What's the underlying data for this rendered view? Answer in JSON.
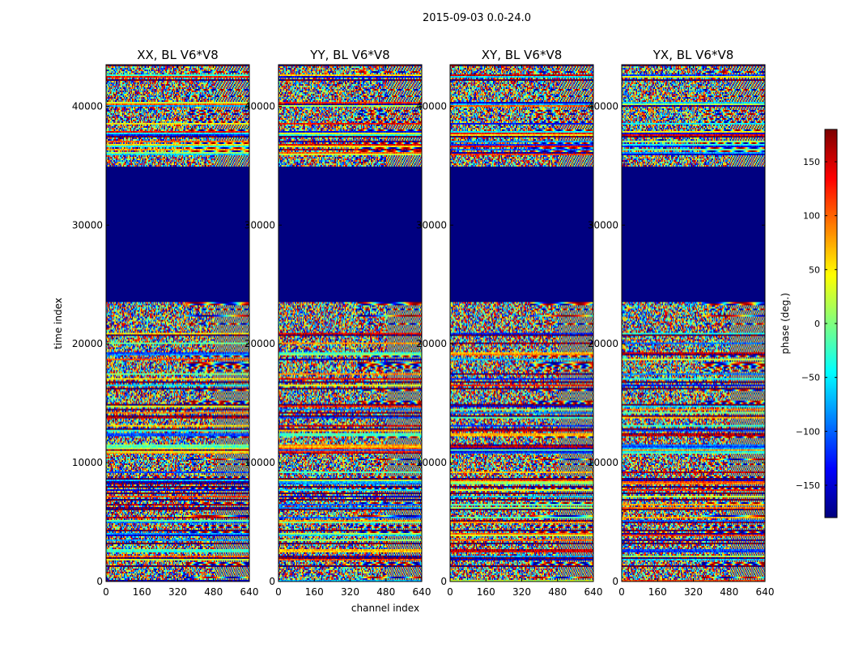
{
  "chart_data": {
    "type": "heatmap",
    "title": "2015-09-03 0.0-24.0",
    "xlabel": "channel index",
    "ylabel": "time index",
    "xlim": [
      0,
      640
    ],
    "ylim": [
      0,
      43500
    ],
    "x_ticks": [
      0,
      160,
      320,
      480,
      640
    ],
    "y_ticks": [
      0,
      10000,
      20000,
      30000,
      40000
    ],
    "panels": [
      {
        "title": "XX, BL V6*V8",
        "pol": "XX"
      },
      {
        "title": "YY, BL V6*V8",
        "pol": "YY"
      },
      {
        "title": "XY, BL V6*V8",
        "pol": "XY"
      },
      {
        "title": "YX, BL V6*V8",
        "pol": "YX"
      }
    ],
    "colorbar": {
      "label": "phase (deg.)",
      "colormap": "jet",
      "range": [
        -180,
        180
      ],
      "ticks": [
        150,
        100,
        50,
        0,
        -50,
        -100,
        -150
      ],
      "tick_labels": [
        "150",
        "100",
        "50",
        "0",
        "−50",
        "−100",
        "−150"
      ]
    },
    "flagged_time_range": [
      23500,
      35000
    ],
    "flagged_phase_value": -180
  }
}
